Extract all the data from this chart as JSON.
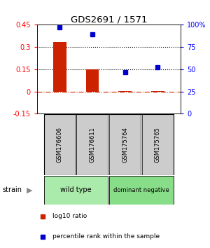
{
  "title": "GDS2691 / 1571",
  "samples": [
    "GSM176606",
    "GSM176611",
    "GSM175764",
    "GSM175765"
  ],
  "log10_ratio": [
    0.335,
    0.148,
    0.005,
    0.005
  ],
  "percentile_rank": [
    97,
    89,
    47,
    52
  ],
  "groups": [
    {
      "name": "wild type",
      "samples": [
        0,
        1
      ],
      "color": "#aaeaaa"
    },
    {
      "name": "dominant negative",
      "samples": [
        2,
        3
      ],
      "color": "#88dd88"
    }
  ],
  "bar_color": "#CC2200",
  "dot_color": "#0000CC",
  "ylim_left": [
    -0.15,
    0.45
  ],
  "ylim_right": [
    0,
    100
  ],
  "yticks_left": [
    -0.15,
    0.0,
    0.15,
    0.3,
    0.45
  ],
  "ytick_labels_left": [
    "-0.15",
    "0",
    "0.15",
    "0.3",
    "0.45"
  ],
  "yticks_right": [
    0,
    25,
    50,
    75,
    100
  ],
  "ytick_labels_right": [
    "0",
    "25",
    "50",
    "75",
    "100%"
  ],
  "hline_y": [
    0.15,
    0.3
  ],
  "zero_line_y": 0.0,
  "background_color": "#ffffff",
  "plot_bg_color": "#ffffff",
  "sample_box_color": "#cccccc",
  "strain_label": "strain",
  "legend_items": [
    {
      "color": "#CC2200",
      "label": "log10 ratio"
    },
    {
      "color": "#0000CC",
      "label": "percentile rank within the sample"
    }
  ]
}
